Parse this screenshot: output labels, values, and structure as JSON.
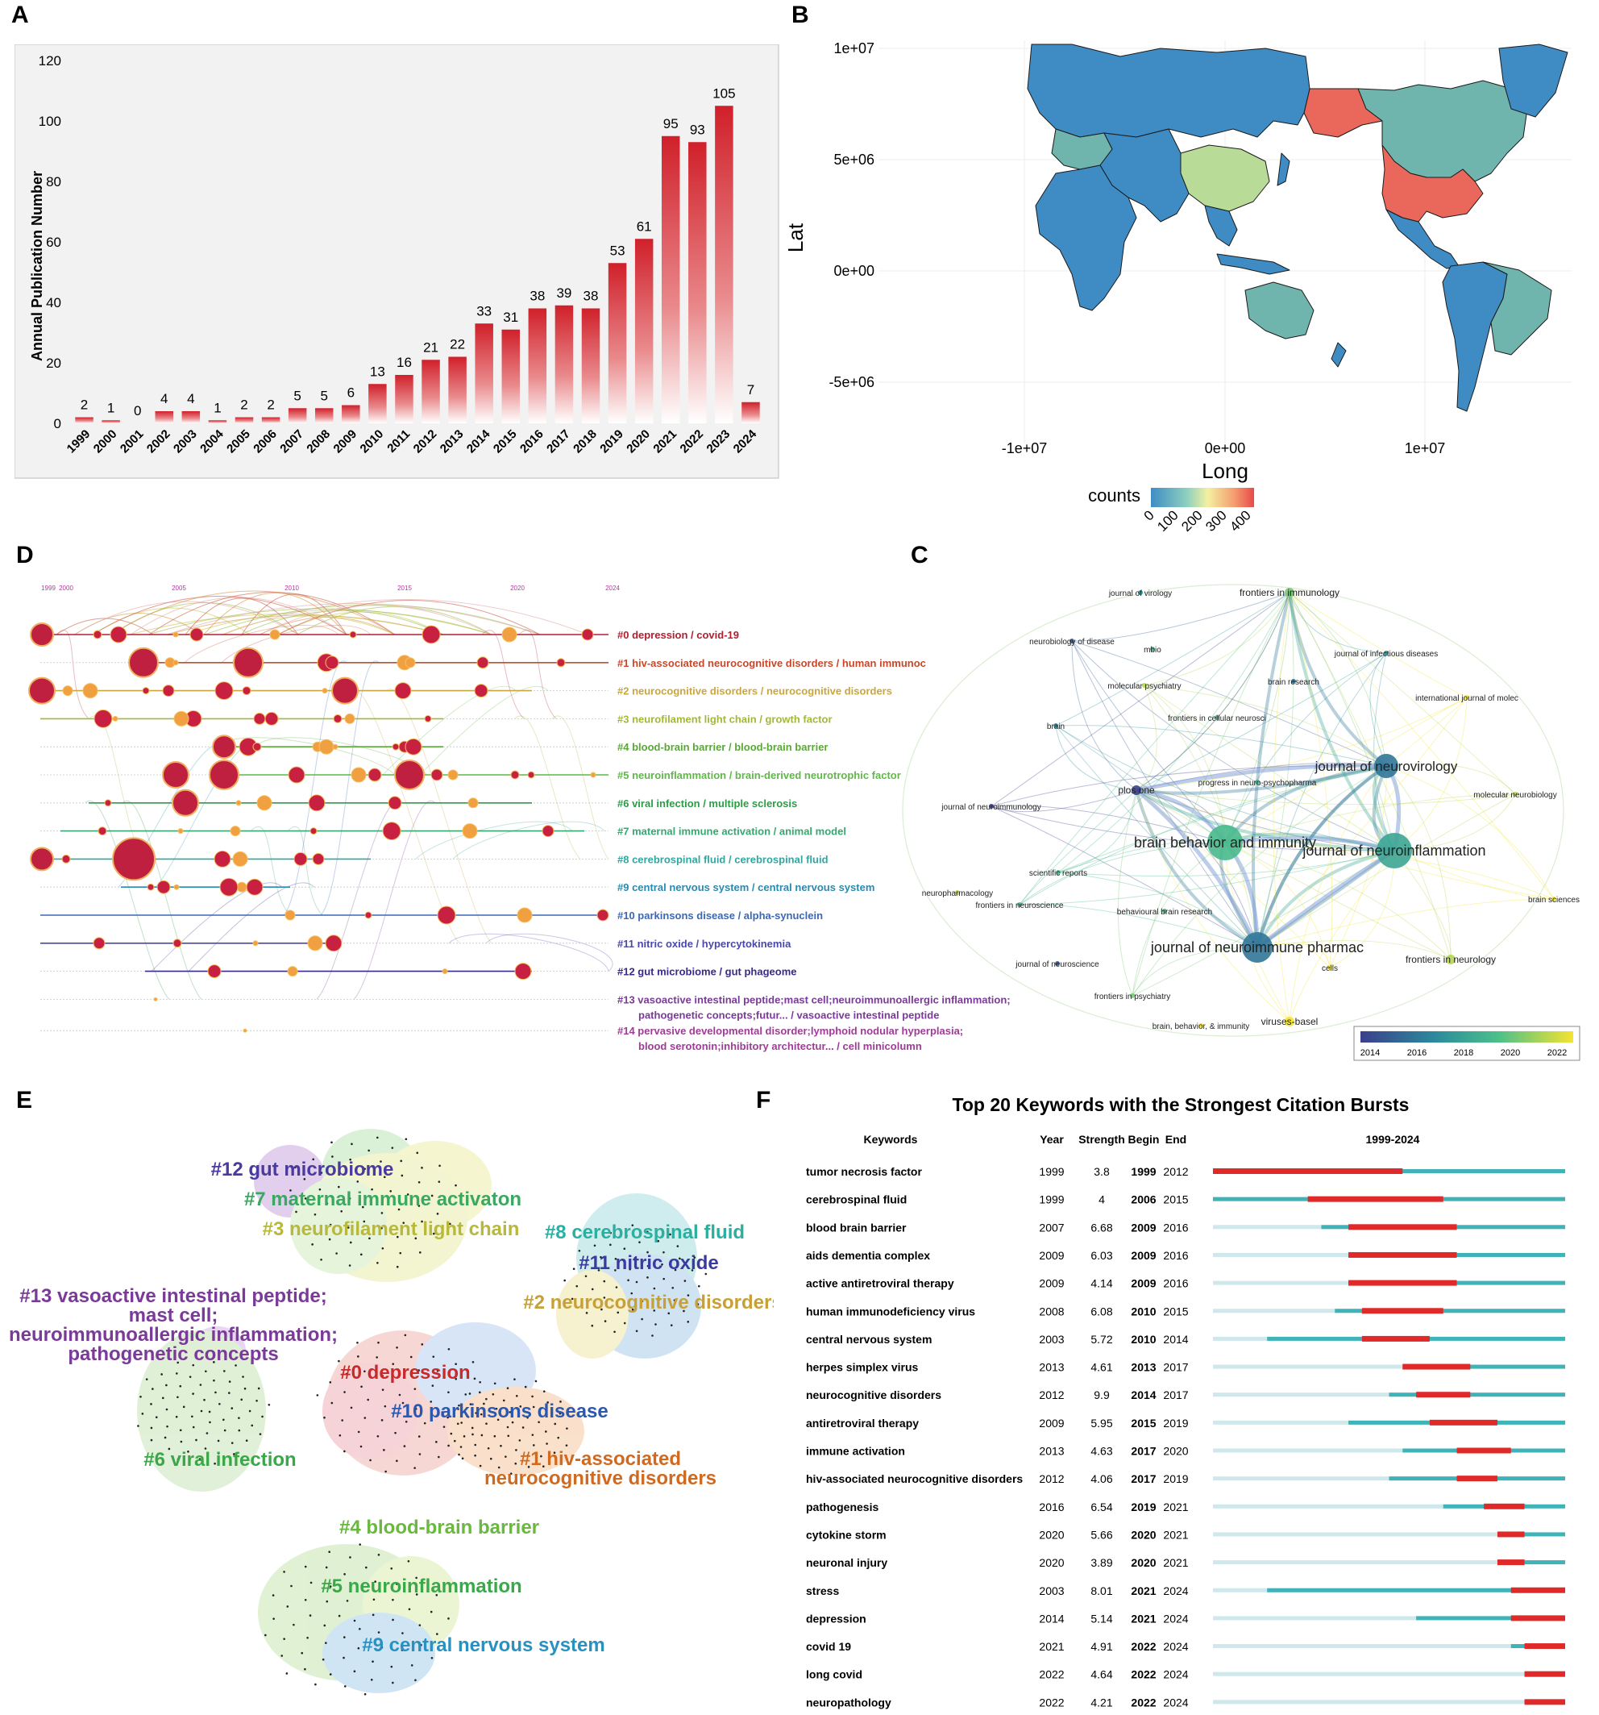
{
  "panel_labels": {
    "A": "A",
    "B": "B",
    "C": "C",
    "D": "D",
    "E": "E",
    "F": "F"
  },
  "colors": {
    "bar_red": "#d62a2f",
    "world_blue": "#3f8cc4",
    "world_teal": "#6fb5ad",
    "world_green": "#b8dc98",
    "world_salmon": "#e9685b",
    "sea": "#ffffff",
    "burst_red": "#e02a2a",
    "burst_teal": "#3fb3b8",
    "burst_light": "#cfe8ec"
  },
  "chart_data": [
    {
      "id": "A",
      "type": "bar",
      "title": "",
      "xlabel": "",
      "ylabel": "Annual Publication Number",
      "ylim": [
        0,
        120
      ],
      "yticks": [
        0,
        20,
        40,
        60,
        80,
        100,
        120
      ],
      "categories": [
        "1999",
        "2000",
        "2001",
        "2002",
        "2003",
        "2004",
        "2005",
        "2006",
        "2007",
        "2008",
        "2009",
        "2010",
        "2011",
        "2012",
        "2013",
        "2014",
        "2015",
        "2016",
        "2017",
        "2018",
        "2019",
        "2020",
        "2021",
        "2022",
        "2023",
        "2024"
      ],
      "values": [
        2,
        1,
        0,
        4,
        4,
        1,
        2,
        2,
        5,
        5,
        6,
        13,
        16,
        21,
        22,
        33,
        31,
        38,
        39,
        38,
        53,
        61,
        95,
        93,
        105,
        7
      ]
    },
    {
      "id": "B",
      "type": "heatmap",
      "title": "",
      "xlabel": "Long",
      "ylabel": "Lat",
      "x_ticks": [
        "-1e+07",
        "0e+00",
        "1e+07"
      ],
      "y_ticks": [
        "1e+07",
        "5e+06",
        "0e+00",
        "-5e+06"
      ],
      "legend_title": "counts",
      "legend_ticks": [
        "0",
        "100",
        "200",
        "300",
        "400"
      ]
    },
    {
      "id": "C",
      "type": "scatter",
      "title": "",
      "nodes": [
        {
          "label": "journal of virology",
          "size": 1,
          "year": 2017
        },
        {
          "label": "frontiers in immunology",
          "size": 2,
          "year": 2020
        },
        {
          "label": "neurobiology of disease",
          "size": 1,
          "year": 2015
        },
        {
          "label": "mbio",
          "size": 1,
          "year": 2019
        },
        {
          "label": "journal of infectious diseases",
          "size": 1,
          "year": 2017
        },
        {
          "label": "molecular psychiatry",
          "size": 1,
          "year": 2021
        },
        {
          "label": "brain research",
          "size": 1,
          "year": 2016
        },
        {
          "label": "international journal of molec",
          "size": 1,
          "year": 2022
        },
        {
          "label": "brain",
          "size": 1,
          "year": 2017
        },
        {
          "label": "frontiers in cellular neurosci",
          "size": 1,
          "year": 2019
        },
        {
          "label": "journal of neurovirology",
          "size": 4,
          "year": 2016
        },
        {
          "label": "plos one",
          "size": 2,
          "year": 2014
        },
        {
          "label": "progress in neuro-psychopharma",
          "size": 1,
          "year": 2019
        },
        {
          "label": "molecular neurobiology",
          "size": 1,
          "year": 2021
        },
        {
          "label": "journal of neuroimmunology",
          "size": 1,
          "year": 2014
        },
        {
          "label": "brain behavior and immunity",
          "size": 6,
          "year": 2019
        },
        {
          "label": "journal of neuroinflammation",
          "size": 6,
          "year": 2018
        },
        {
          "label": "scientific reports",
          "size": 1,
          "year": 2019
        },
        {
          "label": "neuropharmacology",
          "size": 1,
          "year": 2021
        },
        {
          "label": "brain sciences",
          "size": 1,
          "year": 2022
        },
        {
          "label": "frontiers in neuroscience",
          "size": 1,
          "year": 2019
        },
        {
          "label": "behavioural brain research",
          "size": 1,
          "year": 2019
        },
        {
          "label": "journal of neuroimmune pharmac",
          "size": 5,
          "year": 2016
        },
        {
          "label": "frontiers in neurology",
          "size": 2,
          "year": 2021
        },
        {
          "label": "journal of neuroscience",
          "size": 1,
          "year": 2015
        },
        {
          "label": "cells",
          "size": 1,
          "year": 2022
        },
        {
          "label": "frontiers in psychiatry",
          "size": 1,
          "year": 2020
        },
        {
          "label": "brain, behavior, & immunity",
          "size": 1,
          "year": 2022
        },
        {
          "label": "viruses-basel",
          "size": 2,
          "year": 2022
        }
      ],
      "legend_ticks": [
        "2014",
        "2016",
        "2018",
        "2020",
        "2022"
      ]
    },
    {
      "id": "D",
      "type": "line",
      "title": "",
      "x_ticks": [
        "1999",
        "2000",
        "2005",
        "2010",
        "2015",
        "2020",
        "2024"
      ],
      "clusters": [
        {
          "label": "#0 depression / covid-19",
          "color": "#b02030"
        },
        {
          "label": "#1 hiv-associated neurocognitive disorders / human immunoc",
          "color": "#c8482a"
        },
        {
          "label": "#2 neurocognitive disorders / neurocognitive disorders",
          "color": "#c9a640"
        },
        {
          "label": "#3 neurofilament light chain / growth factor",
          "color": "#a2b838"
        },
        {
          "label": "#4 blood-brain barrier / blood-brain barrier",
          "color": "#5aa838"
        },
        {
          "label": "#5 neuroinflammation / brain-derived neurotrophic factor",
          "color": "#5fb848"
        },
        {
          "label": "#6 viral infection / multiple sclerosis",
          "color": "#2f9a48"
        },
        {
          "label": "#7 maternal immune activation / animal model",
          "color": "#36a870"
        },
        {
          "label": "#8 cerebrospinal fluid / cerebrospinal fluid",
          "color": "#30a8a0"
        },
        {
          "label": "#9 central nervous system / central nervous system",
          "color": "#2a8ab0"
        },
        {
          "label": "#10 parkinsons disease / alpha-synuclein",
          "color": "#3a68b8"
        },
        {
          "label": "#11 nitric oxide / hypercytokinemia",
          "color": "#4a48a8"
        },
        {
          "label": "#12 gut microbiome / gut phageome",
          "color": "#3a2a88"
        },
        {
          "label": "#13 vasoactive intestinal peptide;mast cell;neuroimmunoallergic inflammation;",
          "label2": "pathogenetic concepts;futur... / vasoactive intestinal peptide",
          "color": "#7a3a98"
        },
        {
          "label": "#14 pervasive developmental disorder;lymphoid nodular hyperplasia;",
          "label2": "blood serotonin;inhibitory architectur... / cell minicolumn",
          "color": "#a03a98"
        }
      ]
    },
    {
      "id": "E",
      "type": "scatter",
      "title": "",
      "clusters": [
        {
          "label": "#12 gut microbiome",
          "color": "#4a3aa0"
        },
        {
          "label": "#7 maternal immune activaton",
          "color": "#3aa860"
        },
        {
          "label": "#3 neurofilament light chain",
          "color": "#b8b83a"
        },
        {
          "label": "#8 cerebrospinal fluid",
          "color": "#2ab0a0"
        },
        {
          "label": "#11 nitric oxide",
          "color": "#3a3aa0"
        },
        {
          "label": "#13 vasoactive intestinal peptide;",
          "label2": "mast cell;",
          "label3": "neuroimmunoallergic inflammation;",
          "label4": "pathogenetic concepts",
          "color": "#7a3a98"
        },
        {
          "label": "#2 neurocognitive disorders",
          "color": "#c8a038"
        },
        {
          "label": "#0 depression",
          "color": "#c82a2a"
        },
        {
          "label": "#10 parkinsons disease",
          "color": "#2a58b0"
        },
        {
          "label": "#1 hiv-associated",
          "label2": "neurocognitive disorders",
          "color": "#d06a20"
        },
        {
          "label": "#6 viral infection",
          "color": "#3aa848"
        },
        {
          "label": "#4 blood-brain barrier",
          "color": "#6ab840"
        },
        {
          "label": "#5 neuroinflammation",
          "color": "#3aa848"
        },
        {
          "label": "#9 central nervous system",
          "color": "#2a90c0"
        }
      ]
    },
    {
      "id": "F",
      "type": "table",
      "title": "Top 20 Keywords with the Strongest Citation Bursts",
      "columns": [
        "Keywords",
        "Year",
        "Strength",
        "Begin",
        "End",
        "1999-2024"
      ],
      "range": [
        1999,
        2024
      ],
      "rows": [
        {
          "keyword": "tumor necrosis factor",
          "year": 1999,
          "strength": "3.8",
          "begin": 1999,
          "end": 2012
        },
        {
          "keyword": "cerebrospinal fluid",
          "year": 1999,
          "strength": "4",
          "begin": 2006,
          "end": 2015
        },
        {
          "keyword": "blood brain barrier",
          "year": 2007,
          "strength": "6.68",
          "begin": 2009,
          "end": 2016
        },
        {
          "keyword": "aids dementia complex",
          "year": 2009,
          "strength": "6.03",
          "begin": 2009,
          "end": 2016
        },
        {
          "keyword": "active antiretroviral therapy",
          "year": 2009,
          "strength": "4.14",
          "begin": 2009,
          "end": 2016
        },
        {
          "keyword": "human immunodeficiency virus",
          "year": 2008,
          "strength": "6.08",
          "begin": 2010,
          "end": 2015
        },
        {
          "keyword": "central nervous system",
          "year": 2003,
          "strength": "5.72",
          "begin": 2010,
          "end": 2014
        },
        {
          "keyword": "herpes simplex virus",
          "year": 2013,
          "strength": "4.61",
          "begin": 2013,
          "end": 2017
        },
        {
          "keyword": "neurocognitive disorders",
          "year": 2012,
          "strength": "9.9",
          "begin": 2014,
          "end": 2017
        },
        {
          "keyword": "antiretroviral therapy",
          "year": 2009,
          "strength": "5.95",
          "begin": 2015,
          "end": 2019
        },
        {
          "keyword": "immune activation",
          "year": 2013,
          "strength": "4.63",
          "begin": 2017,
          "end": 2020
        },
        {
          "keyword": "hiv-associated neurocognitive disorders",
          "year": 2012,
          "strength": "4.06",
          "begin": 2017,
          "end": 2019
        },
        {
          "keyword": "pathogenesis",
          "year": 2016,
          "strength": "6.54",
          "begin": 2019,
          "end": 2021
        },
        {
          "keyword": "cytokine storm",
          "year": 2020,
          "strength": "5.66",
          "begin": 2020,
          "end": 2021
        },
        {
          "keyword": "neuronal injury",
          "year": 2020,
          "strength": "3.89",
          "begin": 2020,
          "end": 2021
        },
        {
          "keyword": "stress",
          "year": 2003,
          "strength": "8.01",
          "begin": 2021,
          "end": 2024
        },
        {
          "keyword": "depression",
          "year": 2014,
          "strength": "5.14",
          "begin": 2021,
          "end": 2024
        },
        {
          "keyword": "covid 19",
          "year": 2021,
          "strength": "4.91",
          "begin": 2022,
          "end": 2024
        },
        {
          "keyword": "long covid",
          "year": 2022,
          "strength": "4.64",
          "begin": 2022,
          "end": 2024
        },
        {
          "keyword": "neuropathology",
          "year": 2022,
          "strength": "4.21",
          "begin": 2022,
          "end": 2024
        }
      ]
    }
  ]
}
